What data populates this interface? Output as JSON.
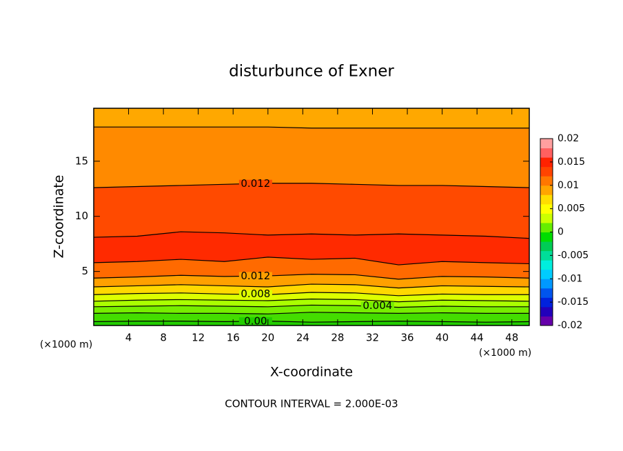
{
  "chart_data": {
    "type": "contour",
    "title": "disturbunce of Exner",
    "x_label": "X-coordinate",
    "y_label": "Z-coordinate",
    "x_unit_left": "(×1000 m)",
    "x_unit_right": "(×1000 m)",
    "footer": "CONTOUR INTERVAL = 2.000E-03",
    "xlim": [
      0,
      50
    ],
    "ylim": [
      0.1,
      19.8
    ],
    "xticks": [
      4,
      8,
      12,
      16,
      20,
      24,
      28,
      32,
      36,
      40,
      44,
      48
    ],
    "yticks": [
      5,
      10,
      15
    ],
    "x": [
      0,
      5,
      10,
      15,
      20,
      25,
      30,
      35,
      40,
      45,
      50
    ],
    "contours": [
      {
        "level": 0.0,
        "label": "0.00",
        "label_x": 17,
        "z": [
          0.45,
          0.5,
          0.5,
          0.45,
          0.5,
          0.4,
          0.45,
          0.5,
          0.45,
          0.4,
          0.45
        ]
      },
      {
        "level": 0.002,
        "z": [
          1.2,
          1.25,
          1.2,
          1.2,
          1.15,
          1.3,
          1.25,
          1.2,
          1.25,
          1.2,
          1.2
        ]
      },
      {
        "level": 0.004,
        "label": "0.004",
        "label_x": 31,
        "z": [
          1.8,
          1.85,
          1.9,
          1.85,
          1.8,
          1.95,
          1.9,
          1.75,
          1.85,
          1.8,
          1.8
        ]
      },
      {
        "level": 0.006,
        "z": [
          2.3,
          2.4,
          2.45,
          2.4,
          2.35,
          2.5,
          2.45,
          2.25,
          2.4,
          2.35,
          2.3
        ]
      },
      {
        "level": 0.008,
        "label": "0.008",
        "label_x": 17,
        "z": [
          2.9,
          3.0,
          3.05,
          2.95,
          2.9,
          3.1,
          3.05,
          2.8,
          2.95,
          2.9,
          2.9
        ]
      },
      {
        "level": 0.01,
        "z": [
          3.6,
          3.7,
          3.8,
          3.7,
          3.6,
          3.85,
          3.8,
          3.5,
          3.7,
          3.65,
          3.6
        ]
      },
      {
        "level": 0.012,
        "label": "0.012",
        "label_x": 17,
        "z": [
          4.4,
          4.5,
          4.65,
          4.55,
          4.6,
          4.75,
          4.7,
          4.3,
          4.55,
          4.5,
          4.4
        ]
      },
      {
        "level": 0.014,
        "z": [
          5.8,
          5.9,
          6.1,
          5.9,
          6.3,
          6.1,
          6.2,
          5.6,
          5.9,
          5.8,
          5.7
        ]
      },
      {
        "level": 0.014,
        "z": [
          8.1,
          8.2,
          8.6,
          8.5,
          8.3,
          8.4,
          8.3,
          8.4,
          8.3,
          8.2,
          8.0
        ]
      },
      {
        "level": 0.012,
        "label": "0.012",
        "label_x": 17,
        "z": [
          12.6,
          12.7,
          12.8,
          12.9,
          13.0,
          13.0,
          12.9,
          12.8,
          12.8,
          12.7,
          12.6
        ]
      },
      {
        "level": 0.01,
        "z": [
          18.1,
          18.1,
          18.1,
          18.1,
          18.1,
          18.0,
          18.0,
          18.0,
          18.0,
          18.0,
          18.0
        ]
      }
    ],
    "band_colors": [
      "#22cc00",
      "#44dd00",
      "#77ee00",
      "#aaff00",
      "#ddff00",
      "#ffd800",
      "#ffa000",
      "#ff6a00",
      "#ff2a00",
      "#ff4a00",
      "#ff8a00",
      "#ffa800"
    ],
    "colorbar_lim": [
      -0.02,
      0.02
    ],
    "colorbar_ticks": [
      -0.02,
      -0.015,
      -0.01,
      -0.005,
      0,
      0.005,
      0.01,
      0.015,
      0.02
    ],
    "colorbar_colors": [
      "#6600aa",
      "#2200bb",
      "#0022dd",
      "#0055ee",
      "#0099ff",
      "#00ccff",
      "#00eedd",
      "#00dd99",
      "#00cc55",
      "#00dd00",
      "#66ee00",
      "#ccff00",
      "#ffff00",
      "#ffdd00",
      "#ffa500",
      "#ff7700",
      "#ff4400",
      "#ff2200",
      "#ff6060",
      "#ffa0a0"
    ]
  }
}
